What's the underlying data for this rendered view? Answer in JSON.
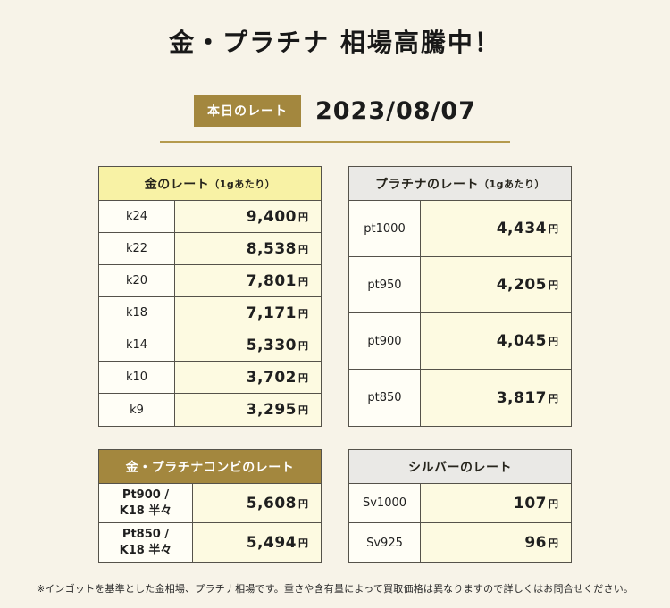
{
  "header": {
    "title": "金・プラチナ 相場高騰中！",
    "badge": "本日のレート",
    "date": "2023/08/07"
  },
  "unit": "円",
  "tables": {
    "gold": {
      "title": "金のレート",
      "subtitle": "（1gあたり）",
      "rows": [
        {
          "label": "k24",
          "value": "9,400"
        },
        {
          "label": "k22",
          "value": "8,538"
        },
        {
          "label": "k20",
          "value": "7,801"
        },
        {
          "label": "k18",
          "value": "7,171"
        },
        {
          "label": "k14",
          "value": "5,330"
        },
        {
          "label": "k10",
          "value": "3,702"
        },
        {
          "label": "k9",
          "value": "3,295"
        }
      ]
    },
    "platinum": {
      "title": "プラチナのレート",
      "subtitle": "（1gあたり）",
      "rows": [
        {
          "label": "pt1000",
          "value": "4,434"
        },
        {
          "label": "pt950",
          "value": "4,205"
        },
        {
          "label": "pt900",
          "value": "4,045"
        },
        {
          "label": "pt850",
          "value": "3,817"
        }
      ]
    },
    "combo": {
      "title": "金・プラチナコンビのレート",
      "rows": [
        {
          "label_line1": "Pt900 /",
          "label_line2": "K18 半々",
          "value": "5,608"
        },
        {
          "label_line1": "Pt850 /",
          "label_line2": "K18 半々",
          "value": "5,494"
        }
      ]
    },
    "silver": {
      "title": "シルバーのレート",
      "rows": [
        {
          "label": "Sv1000",
          "value": "107"
        },
        {
          "label": "Sv925",
          "value": "96"
        }
      ]
    }
  },
  "footnote": "※インゴットを基準とした金相場、プラチナ相場です。重さや含有量によって買取価格は異なりますので詳しくはお問合せください。"
}
